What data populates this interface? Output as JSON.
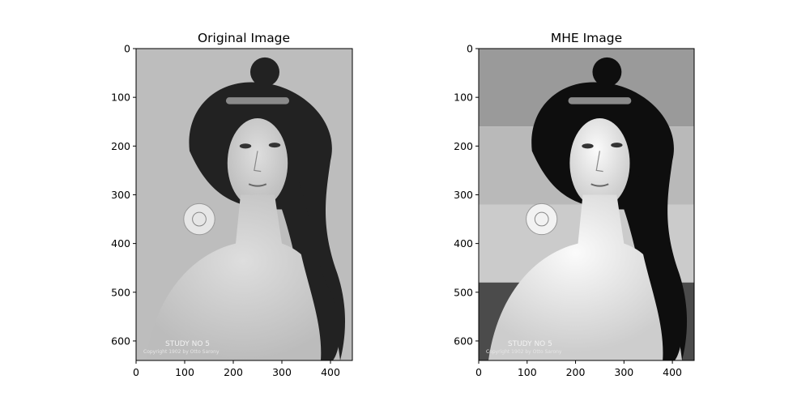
{
  "chart_data": [
    {
      "type": "image",
      "title": "Original Image",
      "image_description": "Grayscale portrait of a young woman with long dark wavy hair and a jeweled headband, a rose at her shoulder; low-contrast, soft gray tones.",
      "image_annotation": [
        "STUDY NO 5",
        "Copyright 1902 by Otto Sarony"
      ],
      "xlim": [
        0,
        445
      ],
      "ylim": [
        640,
        0
      ],
      "xticks": [
        0,
        100,
        200,
        300,
        400
      ],
      "yticks": [
        0,
        100,
        200,
        300,
        400,
        500,
        600
      ],
      "style": {
        "background": "#bdbdbd",
        "hair": "#222222",
        "skin": "#d2d2d2",
        "rose": "#e6e6e6"
      }
    },
    {
      "type": "image",
      "title": "MHE Image",
      "image_description": "Same portrait after block-wise histogram equalization; higher contrast with visible horizontal band boundaries.",
      "image_annotation": [
        "STUDY NO 5",
        "Copyright 1902 by Otto Sarony"
      ],
      "xlim": [
        0,
        445
      ],
      "ylim": [
        640,
        0
      ],
      "xticks": [
        0,
        100,
        200,
        300,
        400
      ],
      "yticks": [
        0,
        100,
        200,
        300,
        400,
        500,
        600
      ],
      "bands": [
        {
          "y0": 0,
          "y1": 160,
          "background": "#9a9a9a"
        },
        {
          "y0": 160,
          "y1": 320,
          "background": "#b9b9b9"
        },
        {
          "y0": 320,
          "y1": 480,
          "background": "#cbcbcb"
        },
        {
          "y0": 480,
          "y1": 640,
          "background": "#4b4b4b"
        }
      ],
      "style": {
        "hair": "#0e0e0e",
        "skin": "#ededed",
        "rose": "#f2f2f2"
      }
    }
  ]
}
